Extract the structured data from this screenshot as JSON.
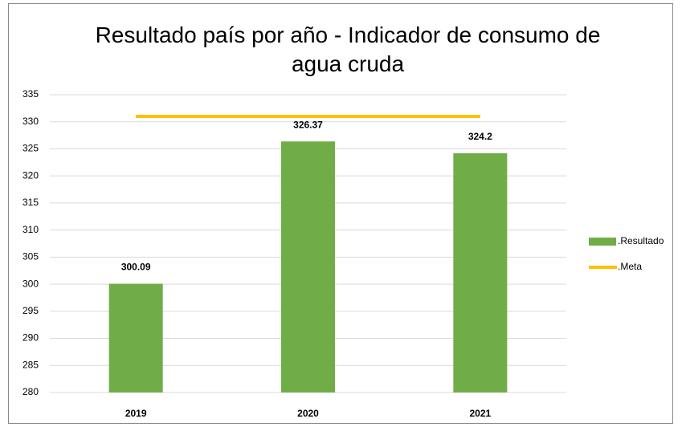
{
  "chart_data": {
    "type": "bar",
    "title": "Resultado país por año - Indicador de consumo de agua cruda",
    "categories": [
      "2019",
      "2020",
      "2021"
    ],
    "series": [
      {
        "name": ".Resultado",
        "color": "#70ad47",
        "values": [
          300.09,
          326.37,
          324.2
        ]
      },
      {
        "name": ".Meta",
        "color": "#ffc000",
        "type": "line",
        "values": [
          331,
          331,
          331
        ]
      }
    ],
    "ylim": [
      280,
      335
    ],
    "yticks": [
      280,
      285,
      290,
      295,
      300,
      305,
      310,
      315,
      320,
      325,
      330,
      335
    ],
    "grid": true,
    "legend": "right"
  }
}
